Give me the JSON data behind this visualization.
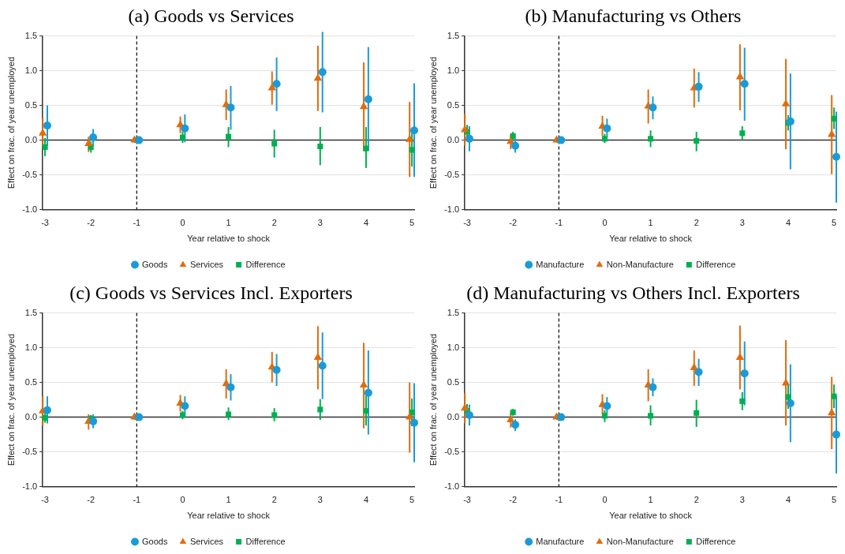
{
  "chart_data": [
    {
      "type": "scatter",
      "title": "(a) Goods vs Services",
      "xlabel": "Year relative to shock",
      "ylabel": "Effect on frac. of year unemployed",
      "xlim": [
        -3.05,
        5.05
      ],
      "ylim": [
        -1,
        1.5
      ],
      "xticks": [
        -3,
        -2,
        -1,
        0,
        1,
        2,
        3,
        4,
        5
      ],
      "yticks": [
        {
          "value": -1,
          "label": "-1.0"
        },
        {
          "value": -0.5,
          "label": "-0.5"
        },
        {
          "value": 0,
          "label": "0.0"
        },
        {
          "value": 0.5,
          "label": "0.5"
        },
        {
          "value": 1,
          "label": "1.0"
        },
        {
          "value": 1.5,
          "label": "1.5"
        }
      ],
      "grid": "y",
      "legend": "bottom",
      "ref_lines": [
        {
          "axis": "y",
          "value": 0,
          "line_style": "solid",
          "color": "#333333"
        },
        {
          "axis": "x",
          "value": -1,
          "line_style": "dashed",
          "color": "#000000"
        }
      ],
      "series": [
        {
          "name": "Goods",
          "color": "#1a9bd7",
          "marker": "circle",
          "x": [
            -2.95,
            -1.95,
            -0.95,
            0.05,
            1.05,
            2.05,
            3.05,
            4.05,
            5.05
          ],
          "values": [
            0.21,
            0.04,
            0,
            0.17,
            0.47,
            0.81,
            0.98,
            0.59,
            0.14
          ],
          "errors": [
            [
              -0.08,
              0.5
            ],
            [
              -0.08,
              0.16
            ],
            null,
            [
              -0.03,
              0.37
            ],
            [
              0.15,
              0.78
            ],
            [
              0.42,
              1.19
            ],
            [
              0.4,
              1.56
            ],
            [
              -0.15,
              1.34
            ],
            [
              -0.53,
              0.82
            ]
          ]
        },
        {
          "name": "Services",
          "color": "#e36c0a",
          "marker": "triangle",
          "x": [
            -3.05,
            -2.05,
            -1.05,
            -0.05,
            0.95,
            1.95,
            2.95,
            3.95,
            4.95
          ],
          "values": [
            0.1,
            -0.05,
            0,
            0.22,
            0.51,
            0.75,
            0.89,
            0.48,
            0.01
          ],
          "errors": [
            [
              -0.1,
              0.32
            ],
            [
              -0.17,
              0.05
            ],
            null,
            [
              0.1,
              0.34
            ],
            [
              0.29,
              0.73
            ],
            [
              0.51,
              0.99
            ],
            [
              0.42,
              1.36
            ],
            [
              -0.16,
              1.12
            ],
            [
              -0.53,
              0.55
            ]
          ]
        },
        {
          "name": "Difference",
          "color": "#00b050",
          "marker": "square",
          "x": [
            -3,
            -2,
            -1,
            0,
            1,
            2,
            3,
            4,
            5
          ],
          "values": [
            -0.1,
            -0.1,
            0,
            0.04,
            0.05,
            -0.05,
            -0.09,
            -0.12,
            -0.14
          ],
          "errors": [
            [
              -0.23,
              0.03
            ],
            [
              -0.18,
              -0.02
            ],
            null,
            [
              -0.04,
              0.12
            ],
            [
              -0.1,
              0.19
            ],
            [
              -0.25,
              0.15
            ],
            [
              -0.36,
              0.19
            ],
            [
              -0.4,
              0.19
            ],
            [
              -0.38,
              0.1
            ]
          ]
        }
      ]
    },
    {
      "type": "scatter",
      "title": "(b) Manufacturing vs Others",
      "xlabel": "Year relative to shock",
      "ylabel": "Effect on frac. of year unemployed",
      "xlim": [
        -3.05,
        5.05
      ],
      "ylim": [
        -1,
        1.5
      ],
      "xticks": [
        -3,
        -2,
        -1,
        0,
        1,
        2,
        3,
        4,
        5
      ],
      "yticks": [
        {
          "value": -1,
          "label": "-1.0"
        },
        {
          "value": -0.5,
          "label": "-0.5"
        },
        {
          "value": 0,
          "label": "0.0"
        },
        {
          "value": 0.5,
          "label": "0.5"
        },
        {
          "value": 1,
          "label": "1.0"
        },
        {
          "value": 1.5,
          "label": "1.5"
        }
      ],
      "grid": "y",
      "legend": "bottom",
      "ref_lines": [
        {
          "axis": "y",
          "value": 0,
          "line_style": "solid",
          "color": "#333333"
        },
        {
          "axis": "x",
          "value": -1,
          "line_style": "dashed",
          "color": "#000000"
        }
      ],
      "series": [
        {
          "name": "Manufacture",
          "color": "#1a9bd7",
          "marker": "circle",
          "x": [
            -2.95,
            -1.95,
            -0.95,
            0.05,
            1.05,
            2.05,
            3.05,
            4.05,
            5.05
          ],
          "values": [
            0.02,
            -0.08,
            0,
            0.17,
            0.47,
            0.77,
            0.81,
            0.27,
            -0.24
          ],
          "errors": [
            [
              -0.16,
              0.2
            ],
            [
              -0.18,
              0.02
            ],
            null,
            [
              0.04,
              0.31
            ],
            [
              0.3,
              0.63
            ],
            [
              0.55,
              0.98
            ],
            [
              0.28,
              1.33
            ],
            [
              -0.42,
              0.96
            ],
            [
              -0.9,
              0.41
            ]
          ]
        },
        {
          "name": "Non-Manufacture",
          "color": "#e36c0a",
          "marker": "triangle",
          "x": [
            -3.05,
            -2.05,
            -1.05,
            -0.05,
            0.95,
            1.95,
            2.95,
            3.95,
            4.95
          ],
          "values": [
            0.15,
            -0.02,
            0,
            0.2,
            0.49,
            0.75,
            0.91,
            0.52,
            0.08
          ],
          "errors": [
            [
              -0.08,
              0.38
            ],
            [
              -0.13,
              0.08
            ],
            null,
            [
              0.06,
              0.35
            ],
            [
              0.24,
              0.73
            ],
            [
              0.47,
              1.03
            ],
            [
              0.43,
              1.38
            ],
            [
              -0.13,
              1.17
            ],
            [
              -0.49,
              0.65
            ]
          ]
        },
        {
          "name": "Difference",
          "color": "#00b050",
          "marker": "square",
          "x": [
            -3,
            -2,
            -1,
            0,
            1,
            2,
            3,
            4,
            5
          ],
          "values": [
            0.12,
            0.06,
            0,
            0.02,
            0.02,
            -0.01,
            0.1,
            0.25,
            0.31
          ],
          "errors": [
            [
              0.02,
              0.22
            ],
            [
              0,
              0.12
            ],
            null,
            [
              -0.04,
              0.09
            ],
            [
              -0.1,
              0.14
            ],
            [
              -0.16,
              0.12
            ],
            [
              0,
              0.2
            ],
            [
              0.14,
              0.36
            ],
            [
              0.16,
              0.47
            ]
          ]
        }
      ]
    },
    {
      "type": "scatter",
      "title": "(c) Goods vs Services Incl. Exporters",
      "xlabel": "Year relative to shock",
      "ylabel": "Effect on frac. of year unemployed",
      "xlim": [
        -3.05,
        5.05
      ],
      "ylim": [
        -1,
        1.5
      ],
      "xticks": [
        -3,
        -2,
        -1,
        0,
        1,
        2,
        3,
        4,
        5
      ],
      "yticks": [
        {
          "value": -1,
          "label": "-1.0"
        },
        {
          "value": -0.5,
          "label": "-0.5"
        },
        {
          "value": 0,
          "label": "0.0"
        },
        {
          "value": 0.5,
          "label": "0.5"
        },
        {
          "value": 1,
          "label": "1.0"
        },
        {
          "value": 1.5,
          "label": "1.5"
        }
      ],
      "grid": "y",
      "legend": "bottom",
      "ref_lines": [
        {
          "axis": "y",
          "value": 0,
          "line_style": "solid",
          "color": "#333333"
        },
        {
          "axis": "x",
          "value": -1,
          "line_style": "dashed",
          "color": "#000000"
        }
      ],
      "series": [
        {
          "name": "Goods",
          "color": "#1a9bd7",
          "marker": "circle",
          "x": [
            -2.95,
            -1.95,
            -0.95,
            0.05,
            1.05,
            2.05,
            3.05,
            4.05,
            5.05
          ],
          "values": [
            0.1,
            -0.06,
            0,
            0.16,
            0.43,
            0.68,
            0.74,
            0.35,
            -0.08
          ],
          "errors": [
            [
              -0.09,
              0.3
            ],
            [
              -0.16,
              0.04
            ],
            null,
            [
              0.02,
              0.3
            ],
            [
              0.24,
              0.62
            ],
            [
              0.45,
              0.91
            ],
            [
              0.26,
              1.22
            ],
            [
              -0.25,
              0.96
            ],
            [
              -0.65,
              0.49
            ]
          ]
        },
        {
          "name": "Services",
          "color": "#e36c0a",
          "marker": "triangle",
          "x": [
            -3.05,
            -2.05,
            -1.05,
            -0.05,
            0.95,
            1.95,
            2.95,
            3.95,
            4.95
          ],
          "values": [
            0.09,
            -0.06,
            0,
            0.2,
            0.48,
            0.72,
            0.86,
            0.46,
            0
          ],
          "errors": [
            [
              -0.12,
              0.3
            ],
            [
              -0.18,
              0.04
            ],
            null,
            [
              0.08,
              0.32
            ],
            [
              0.27,
              0.69
            ],
            [
              0.5,
              0.94
            ],
            [
              0.4,
              1.31
            ],
            [
              -0.16,
              1.07
            ],
            [
              -0.51,
              0.5
            ]
          ]
        },
        {
          "name": "Difference",
          "color": "#00b050",
          "marker": "square",
          "x": [
            -3,
            -2,
            -1,
            0,
            1,
            2,
            3,
            4,
            5
          ],
          "values": [
            -0.01,
            -0.02,
            0,
            0.03,
            0.04,
            0.03,
            0.11,
            0.09,
            0.07
          ],
          "errors": [
            [
              -0.08,
              0.06
            ],
            [
              -0.07,
              0.03
            ],
            null,
            [
              -0.03,
              0.09
            ],
            [
              -0.04,
              0.14
            ],
            [
              -0.06,
              0.13
            ],
            [
              -0.04,
              0.26
            ],
            [
              -0.12,
              0.31
            ],
            [
              -0.13,
              0.27
            ]
          ]
        }
      ]
    },
    {
      "type": "scatter",
      "title": "(d) Manufacturing vs Others Incl. Exporters",
      "xlabel": "Year relative to shock",
      "ylabel": "Effect on frac. of year unemployed",
      "xlim": [
        -3.05,
        5.05
      ],
      "ylim": [
        -1,
        1.5
      ],
      "xticks": [
        -3,
        -2,
        -1,
        0,
        1,
        2,
        3,
        4,
        5
      ],
      "yticks": [
        {
          "value": -1,
          "label": "-1.0"
        },
        {
          "value": -0.5,
          "label": "-0.5"
        },
        {
          "value": 0,
          "label": "0.0"
        },
        {
          "value": 0.5,
          "label": "0.5"
        },
        {
          "value": 1,
          "label": "1.0"
        },
        {
          "value": 1.5,
          "label": "1.5"
        }
      ],
      "grid": "y",
      "legend": "bottom",
      "ref_lines": [
        {
          "axis": "y",
          "value": 0,
          "line_style": "solid",
          "color": "#333333"
        },
        {
          "axis": "x",
          "value": -1,
          "line_style": "dashed",
          "color": "#000000"
        }
      ],
      "series": [
        {
          "name": "Manufacture",
          "color": "#1a9bd7",
          "marker": "circle",
          "x": [
            -2.95,
            -1.95,
            -0.95,
            0.05,
            1.05,
            2.05,
            3.05,
            4.05,
            5.05
          ],
          "values": [
            0.03,
            -0.11,
            0,
            0.16,
            0.43,
            0.65,
            0.63,
            0.2,
            -0.25
          ],
          "errors": [
            [
              -0.12,
              0.18
            ],
            [
              -0.2,
              -0.03
            ],
            null,
            [
              0.04,
              0.29
            ],
            [
              0.3,
              0.56
            ],
            [
              0.45,
              0.84
            ],
            [
              0.17,
              1.09
            ],
            [
              -0.36,
              0.76
            ],
            [
              -0.81,
              0.3
            ]
          ]
        },
        {
          "name": "Non-Manufacture",
          "color": "#e36c0a",
          "marker": "triangle",
          "x": [
            -3.05,
            -2.05,
            -1.05,
            -0.05,
            0.95,
            1.95,
            2.95,
            3.95,
            4.95
          ],
          "values": [
            0.13,
            -0.04,
            0,
            0.18,
            0.46,
            0.71,
            0.86,
            0.49,
            0.06
          ],
          "errors": [
            [
              -0.09,
              0.35
            ],
            [
              -0.15,
              0.07
            ],
            null,
            [
              0.04,
              0.33
            ],
            [
              0.23,
              0.69
            ],
            [
              0.45,
              0.96
            ],
            [
              0.4,
              1.32
            ],
            [
              -0.12,
              1.11
            ],
            [
              -0.46,
              0.58
            ]
          ]
        },
        {
          "name": "Difference",
          "color": "#00b050",
          "marker": "square",
          "x": [
            -3,
            -2,
            -1,
            0,
            1,
            2,
            3,
            4,
            5
          ],
          "values": [
            0.09,
            0.07,
            0,
            0.02,
            0.02,
            0.06,
            0.23,
            0.29,
            0.3
          ],
          "errors": [
            [
              0,
              0.19
            ],
            [
              0.02,
              0.12
            ],
            null,
            [
              -0.07,
              0.1
            ],
            [
              -0.12,
              0.17
            ],
            [
              -0.14,
              0.25
            ],
            [
              0.1,
              0.36
            ],
            [
              0.12,
              0.46
            ],
            [
              0.13,
              0.47
            ]
          ]
        }
      ]
    }
  ]
}
